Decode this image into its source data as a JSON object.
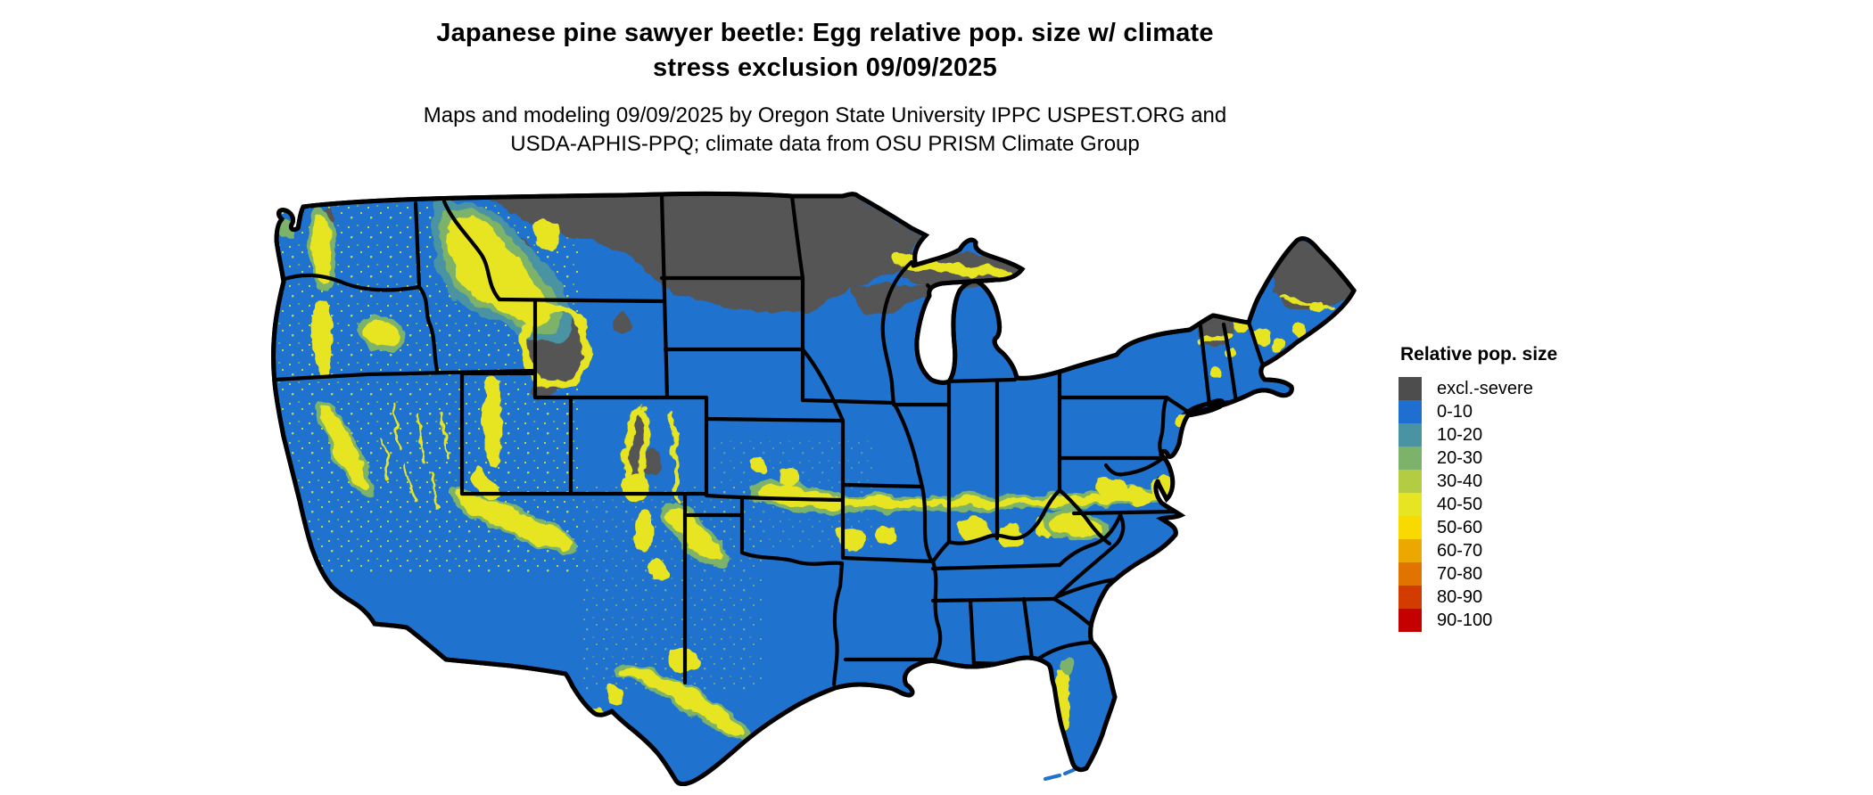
{
  "figure": {
    "title_line1": "Japanese pine sawyer beetle: Egg relative pop. size w/ climate",
    "title_line2": "stress exclusion 09/09/2025",
    "subtitle_line1": "Maps and modeling 09/09/2025 by Oregon State University IPPC USPEST.ORG and",
    "subtitle_line2": "USDA-APHIS-PPQ; climate data from OSU PRISM Climate Group"
  },
  "map": {
    "region": "Contiguous United States",
    "date_shown": "09/09/2025",
    "base_fill": "#1f72ce",
    "excluded_fill": "#545454",
    "border_color": "#000000",
    "background": "#ffffff"
  },
  "legend": {
    "title": "Relative pop. size",
    "items": [
      {
        "label": "excl.-severe",
        "color": "#4d4d4d"
      },
      {
        "label": "0-10",
        "color": "#1f6fd1"
      },
      {
        "label": "10-20",
        "color": "#4a93a3"
      },
      {
        "label": "20-30",
        "color": "#7cb269"
      },
      {
        "label": "30-40",
        "color": "#b4cc41"
      },
      {
        "label": "40-50",
        "color": "#e7e521"
      },
      {
        "label": "50-60",
        "color": "#f8d900"
      },
      {
        "label": "60-70",
        "color": "#eca800"
      },
      {
        "label": "70-80",
        "color": "#e17400"
      },
      {
        "label": "80-90",
        "color": "#d23c00"
      },
      {
        "label": "90-100",
        "color": "#c40000"
      }
    ]
  }
}
